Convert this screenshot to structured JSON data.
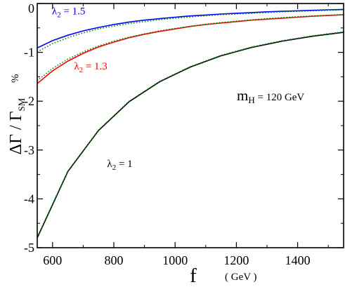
{
  "chart_data": {
    "type": "line",
    "title": "",
    "xlabel": "f",
    "xlabel_unit": "( GeV )",
    "ylabel": "ΔΓ / Γ",
    "ylabel_sub": "SM",
    "ylabel_unit": "%",
    "xlim": [
      550,
      1550
    ],
    "ylim": [
      -5,
      0
    ],
    "xticks": [
      600,
      800,
      1000,
      1200,
      1400
    ],
    "yticks": [
      0,
      -1,
      -2,
      -3,
      -4,
      -5
    ],
    "grid": false,
    "annotation": {
      "prefix": "m",
      "sub": "H",
      "rest": " = 120 GeV"
    },
    "series": [
      {
        "name": "λ2 = 1.5",
        "label": {
          "sym": "λ",
          "sub": "2",
          "rest": " = 1.5"
        },
        "color": "#0000ff",
        "x": [
          550,
          600,
          650,
          700,
          750,
          800,
          850,
          900,
          950,
          1000,
          1050,
          1100,
          1150,
          1200,
          1250,
          1300,
          1350,
          1400,
          1450,
          1500,
          1550
        ],
        "y": [
          -0.91,
          -0.76,
          -0.65,
          -0.56,
          -0.49,
          -0.43,
          -0.38,
          -0.34,
          -0.31,
          -0.28,
          -0.255,
          -0.235,
          -0.215,
          -0.2,
          -0.185,
          -0.17,
          -0.16,
          -0.15,
          -0.14,
          -0.13,
          -0.12
        ],
        "y_dotted": [
          -0.99,
          -0.82,
          -0.7,
          -0.6,
          -0.52,
          -0.46,
          -0.41,
          -0.37,
          -0.33,
          -0.3,
          -0.275,
          -0.25,
          -0.23,
          -0.215,
          -0.2,
          -0.185,
          -0.17,
          -0.16,
          -0.15,
          -0.14,
          -0.13
        ]
      },
      {
        "name": "λ2 = 1.3",
        "label": {
          "sym": "λ",
          "sub": "2",
          "rest": " = 1.3"
        },
        "color": "#ff0000",
        "x": [
          550,
          600,
          650,
          700,
          750,
          800,
          850,
          900,
          950,
          1000,
          1050,
          1100,
          1150,
          1200,
          1250,
          1300,
          1350,
          1400,
          1450,
          1500,
          1550
        ],
        "y": [
          -1.64,
          -1.38,
          -1.18,
          -1.02,
          -0.89,
          -0.79,
          -0.7,
          -0.63,
          -0.57,
          -0.52,
          -0.47,
          -0.43,
          -0.4,
          -0.37,
          -0.34,
          -0.32,
          -0.3,
          -0.28,
          -0.26,
          -0.245,
          -0.23
        ],
        "y_dotted": [
          -1.58,
          -1.33,
          -1.14,
          -0.99,
          -0.87,
          -0.77,
          -0.69,
          -0.62,
          -0.56,
          -0.51,
          -0.465,
          -0.425,
          -0.39,
          -0.36,
          -0.335,
          -0.31,
          -0.29,
          -0.27,
          -0.255,
          -0.24,
          -0.225
        ]
      },
      {
        "name": "λ2 = 1",
        "label": {
          "sym": "λ",
          "sub": "2",
          "rest": " = 1"
        },
        "color": "#000000",
        "x": [
          550,
          650,
          750,
          850,
          950,
          1050,
          1150,
          1250,
          1350,
          1450,
          1550
        ],
        "y": [
          -4.8,
          -3.44,
          -2.6,
          -2.01,
          -1.6,
          -1.3,
          -1.07,
          -0.9,
          -0.77,
          -0.67,
          -0.59
        ],
        "y_dotted": [
          -4.78,
          -3.43,
          -2.59,
          -2.0,
          -1.59,
          -1.29,
          -1.06,
          -0.89,
          -0.76,
          -0.66,
          -0.58
        ]
      }
    ],
    "dotted_color": "#008000"
  }
}
